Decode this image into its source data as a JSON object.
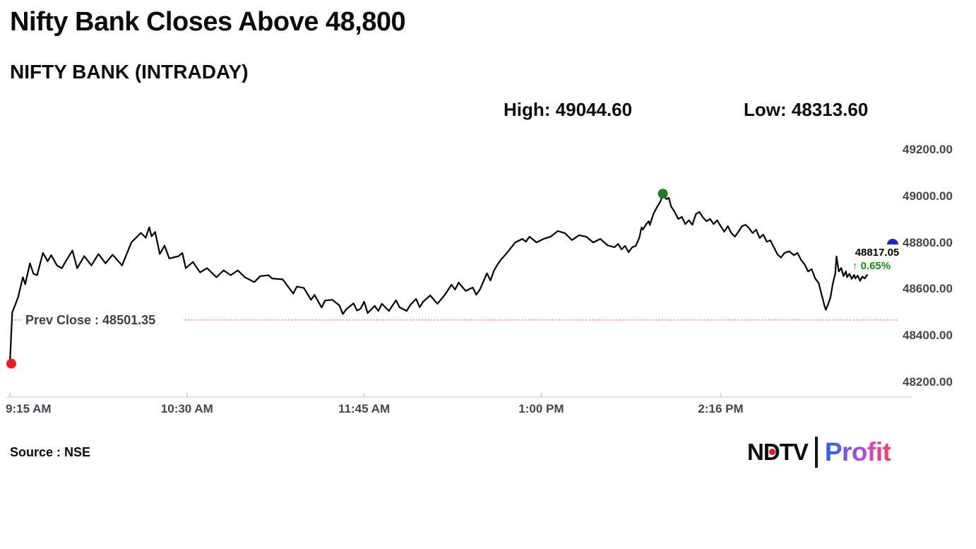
{
  "header": {
    "title": "Nifty Bank Closes Above 48,800",
    "subtitle": "NIFTY BANK (INTRADAY)",
    "high_text": "High: 49044.60",
    "low_text": "Low: 48313.60"
  },
  "overlay": {
    "prev_close_text": "Prev Close : 48501.35",
    "last_price": "48817.05",
    "change_arrow": "↑",
    "change_pct": "0.65%"
  },
  "footer": {
    "source": "Source : NSE",
    "logo": {
      "n": "N",
      "d": "D",
      "tv": "TV",
      "profit": "Profit"
    }
  },
  "colors": {
    "line": "#000000",
    "prev_close_line": "#dd5555",
    "open_dot": "#ec1c23",
    "high_dot": "#1e7d22",
    "close_marker": "#2323cb",
    "change_green": "#119111",
    "axis_text": "#41474e",
    "axis_line": "#d9d9d9"
  },
  "chart_data": {
    "type": "line",
    "title": "Nifty Bank Closes Above 48,800",
    "subtitle": "NIFTY BANK (INTRADAY)",
    "x_unit": "minutes since 09:15 AM",
    "session_minutes": 375,
    "high": 49044.6,
    "low": 48313.6,
    "prev_close": 48501.35,
    "close": 48817.05,
    "change_pct": 0.65,
    "grid": false,
    "legend": false,
    "y_axis": {
      "side": "right",
      "range": [
        48150,
        49260
      ],
      "ticks": [
        {
          "label": "49200.00",
          "value": 49200
        },
        {
          "label": "49000.00",
          "value": 49000
        },
        {
          "label": "48800.00",
          "value": 48800
        },
        {
          "label": "48600.00",
          "value": 48600
        },
        {
          "label": "48400.00",
          "value": 48400
        },
        {
          "label": "48200.00",
          "value": 48200
        }
      ]
    },
    "x_axis": {
      "ticks": [
        {
          "label": "9:15 AM",
          "minutes": 0,
          "align": "left"
        },
        {
          "label": "10:30 AM",
          "minutes": 75,
          "align": "center"
        },
        {
          "label": "11:45 AM",
          "minutes": 150,
          "align": "center"
        },
        {
          "label": "1:00 PM",
          "minutes": 225,
          "align": "center"
        },
        {
          "label": "2:16 PM",
          "minutes": 301,
          "align": "center"
        }
      ]
    },
    "markers": {
      "open": {
        "minutes": 0,
        "price": 48313.6
      },
      "high": {
        "minutes": 276.5,
        "price": 49044.6
      },
      "close": {
        "price": 48817.05
      }
    },
    "series": [
      {
        "name": "NIFTY BANK",
        "points": [
          [
            0,
            48313.6
          ],
          [
            1,
            48533
          ],
          [
            2,
            48560
          ],
          [
            2.5,
            48573
          ],
          [
            3.5,
            48600
          ],
          [
            5.5,
            48685
          ],
          [
            6.5,
            48655
          ],
          [
            8.5,
            48745
          ],
          [
            10,
            48700
          ],
          [
            11.5,
            48694
          ],
          [
            14,
            48790
          ],
          [
            16,
            48754
          ],
          [
            17.5,
            48780
          ],
          [
            20,
            48735
          ],
          [
            22,
            48724
          ],
          [
            24,
            48760
          ],
          [
            26.5,
            48800
          ],
          [
            28.5,
            48724
          ],
          [
            31.5,
            48776
          ],
          [
            34.5,
            48736
          ],
          [
            37.5,
            48785
          ],
          [
            40.5,
            48745
          ],
          [
            43.5,
            48782
          ],
          [
            47.5,
            48736
          ],
          [
            51.5,
            48836
          ],
          [
            55.5,
            48876
          ],
          [
            57.5,
            48855
          ],
          [
            59,
            48900
          ],
          [
            60,
            48861
          ],
          [
            61.5,
            48880
          ],
          [
            63.5,
            48785
          ],
          [
            65.5,
            48821
          ],
          [
            67.5,
            48766
          ],
          [
            71.5,
            48776
          ],
          [
            73,
            48790
          ],
          [
            74.5,
            48724
          ],
          [
            77.5,
            48751
          ],
          [
            80.5,
            48706
          ],
          [
            83.5,
            48724
          ],
          [
            87.5,
            48685
          ],
          [
            90.5,
            48715
          ],
          [
            93.5,
            48694
          ],
          [
            96.5,
            48715
          ],
          [
            99.5,
            48685
          ],
          [
            103.5,
            48664
          ],
          [
            106,
            48690
          ],
          [
            109.5,
            48694
          ],
          [
            111,
            48680
          ],
          [
            115.5,
            48676
          ],
          [
            120,
            48615
          ],
          [
            121.5,
            48645
          ],
          [
            124.5,
            48639
          ],
          [
            127.5,
            48588
          ],
          [
            129,
            48609
          ],
          [
            132,
            48555
          ],
          [
            133.5,
            48585
          ],
          [
            136.5,
            48588
          ],
          [
            139.5,
            48564
          ],
          [
            141,
            48527
          ],
          [
            142.5,
            48548
          ],
          [
            145.5,
            48573
          ],
          [
            147,
            48542
          ],
          [
            148.5,
            48550
          ],
          [
            150,
            48580
          ],
          [
            151.5,
            48531
          ],
          [
            154.5,
            48562
          ],
          [
            156,
            48540
          ],
          [
            157.5,
            48571
          ],
          [
            160.5,
            48540
          ],
          [
            163.5,
            48586
          ],
          [
            165,
            48556
          ],
          [
            168,
            48540
          ],
          [
            169.5,
            48565
          ],
          [
            172,
            48592
          ],
          [
            173.5,
            48556
          ],
          [
            175,
            48580
          ],
          [
            178,
            48607
          ],
          [
            181,
            48571
          ],
          [
            184,
            48607
          ],
          [
            187,
            48653
          ],
          [
            188.5,
            48632
          ],
          [
            190,
            48662
          ],
          [
            193,
            48626
          ],
          [
            196,
            48641
          ],
          [
            197.5,
            48610
          ],
          [
            199,
            48632
          ],
          [
            202,
            48702
          ],
          [
            203.5,
            48671
          ],
          [
            205,
            48714
          ],
          [
            206.5,
            48740
          ],
          [
            208,
            48762
          ],
          [
            210,
            48784
          ],
          [
            214,
            48835
          ],
          [
            217,
            48850
          ],
          [
            218.5,
            48838
          ],
          [
            220,
            48860
          ],
          [
            223,
            48835
          ],
          [
            226,
            48850
          ],
          [
            229,
            48860
          ],
          [
            232,
            48884
          ],
          [
            235,
            48875
          ],
          [
            238,
            48845
          ],
          [
            241,
            48866
          ],
          [
            244,
            48860
          ],
          [
            247,
            48835
          ],
          [
            250,
            48850
          ],
          [
            253,
            48823
          ],
          [
            256,
            48814
          ],
          [
            257.5,
            48829
          ],
          [
            259,
            48805
          ],
          [
            260.5,
            48820
          ],
          [
            262,
            48793
          ],
          [
            263.5,
            48814
          ],
          [
            265,
            48820
          ],
          [
            266.5,
            48854
          ],
          [
            267.5,
            48900
          ],
          [
            268,
            48890
          ],
          [
            269.5,
            48914
          ],
          [
            270.5,
            48926
          ],
          [
            271,
            48910
          ],
          [
            272.5,
            48957
          ],
          [
            274,
            48987
          ],
          [
            275.5,
            49012
          ],
          [
            276.5,
            49044.6
          ],
          [
            278,
            49021
          ],
          [
            279,
            49027
          ],
          [
            280,
            48990
          ],
          [
            281.5,
            48966
          ],
          [
            283,
            48936
          ],
          [
            284.5,
            48945
          ],
          [
            286,
            48914
          ],
          [
            287.5,
            48930
          ],
          [
            289,
            48911
          ],
          [
            290.5,
            48957
          ],
          [
            292,
            48966
          ],
          [
            293.5,
            48942
          ],
          [
            295,
            48926
          ],
          [
            296.5,
            48936
          ],
          [
            298,
            48914
          ],
          [
            299.5,
            48930
          ],
          [
            301,
            48905
          ],
          [
            302.5,
            48881
          ],
          [
            304,
            48905
          ],
          [
            305.5,
            48875
          ],
          [
            307,
            48860
          ],
          [
            308.5,
            48881
          ],
          [
            310,
            48905
          ],
          [
            311.5,
            48911
          ],
          [
            313,
            48896
          ],
          [
            314.5,
            48875
          ],
          [
            316,
            48890
          ],
          [
            317.5,
            48854
          ],
          [
            319,
            48869
          ],
          [
            320.5,
            48838
          ],
          [
            322,
            48844
          ],
          [
            323.5,
            48814
          ],
          [
            325,
            48784
          ],
          [
            326.5,
            48770
          ],
          [
            328,
            48790
          ],
          [
            330,
            48797
          ],
          [
            332,
            48780
          ],
          [
            333.5,
            48790
          ],
          [
            335,
            48760
          ],
          [
            336.5,
            48740
          ],
          [
            338,
            48710
          ],
          [
            339.5,
            48720
          ],
          [
            341,
            48680
          ],
          [
            342.5,
            48660
          ],
          [
            344,
            48600
          ],
          [
            345,
            48560
          ],
          [
            345.5,
            48545
          ],
          [
            346.5,
            48570
          ],
          [
            347.5,
            48600
          ],
          [
            348.5,
            48660
          ],
          [
            349.5,
            48700
          ],
          [
            350,
            48775
          ],
          [
            351,
            48710
          ],
          [
            352,
            48725
          ],
          [
            353,
            48690
          ],
          [
            354,
            48710
          ],
          [
            354.5,
            48685
          ],
          [
            355.5,
            48700
          ],
          [
            356.5,
            48678
          ],
          [
            357.5,
            48695
          ],
          [
            358,
            48680
          ],
          [
            359,
            48692
          ],
          [
            360,
            48670
          ],
          [
            361,
            48688
          ],
          [
            362,
            48680
          ],
          [
            363,
            48695
          ]
        ]
      }
    ]
  }
}
